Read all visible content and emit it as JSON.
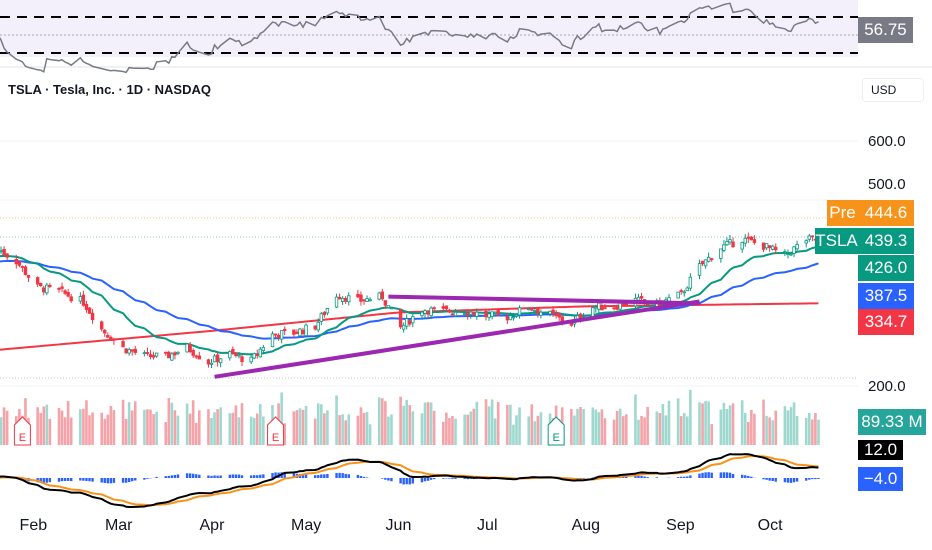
{
  "header": {
    "title": "TSLA · Tesla, Inc. · 1D · NASDAQ",
    "currency": "USD"
  },
  "price_axis": {
    "labels": [
      "600.0",
      "500.0",
      "200.0"
    ]
  },
  "badges": {
    "rsi": {
      "value": "56.75",
      "color": "#787b86"
    },
    "pre_label": "Pre",
    "pre": {
      "value": "444.6",
      "color": "#f7931a"
    },
    "symbol_label": "TSLA",
    "last": {
      "value": "439.3",
      "color": "#089981"
    },
    "ma_fast": {
      "value": "426.0",
      "color": "#089981"
    },
    "ma_mid": {
      "value": "387.5",
      "color": "#2962ff"
    },
    "ma_slow": {
      "value": "334.7",
      "color": "#f23645"
    },
    "volume": {
      "value": "89.33 M",
      "color": "#26a69a"
    },
    "macd": {
      "value": "12.0",
      "color": "#000000"
    },
    "signal": {
      "value": "−4.0",
      "color": "#2962ff"
    }
  },
  "time_axis": [
    "Feb",
    "Mar",
    "Apr",
    "May",
    "Jun",
    "Jul",
    "Aug",
    "Sep",
    "Oct"
  ],
  "chart_data": {
    "type": "candlestick",
    "ylim": [
      200,
      600
    ],
    "weekly_close": [
      [
        "2025-01-21",
        424
      ],
      [
        "2025-01-27",
        404
      ],
      [
        "2025-02-03",
        361
      ],
      [
        "2025-02-10",
        355
      ],
      [
        "2025-02-18",
        337
      ],
      [
        "2025-02-24",
        293
      ],
      [
        "2025-03-03",
        262
      ],
      [
        "2025-03-10",
        249
      ],
      [
        "2025-03-17",
        248
      ],
      [
        "2025-03-24",
        263
      ],
      [
        "2025-03-31",
        239
      ],
      [
        "2025-04-07",
        252
      ],
      [
        "2025-04-14",
        241
      ],
      [
        "2025-04-21",
        284
      ],
      [
        "2025-04-28",
        287
      ],
      [
        "2025-05-05",
        298
      ],
      [
        "2025-05-12",
        349
      ],
      [
        "2025-05-19",
        339
      ],
      [
        "2025-05-27",
        346
      ],
      [
        "2025-06-02",
        295
      ],
      [
        "2025-06-09",
        325
      ],
      [
        "2025-06-16",
        322
      ],
      [
        "2025-06-23",
        323
      ],
      [
        "2025-06-30",
        315
      ],
      [
        "2025-07-07",
        313
      ],
      [
        "2025-07-14",
        329
      ],
      [
        "2025-07-21",
        316
      ],
      [
        "2025-07-28",
        302
      ],
      [
        "2025-08-04",
        329
      ],
      [
        "2025-08-11",
        330
      ],
      [
        "2025-08-18",
        340
      ],
      [
        "2025-08-25",
        333
      ],
      [
        "2025-09-02",
        350
      ],
      [
        "2025-09-08",
        395
      ],
      [
        "2025-09-15",
        426
      ],
      [
        "2025-09-22",
        440
      ],
      [
        "2025-09-29",
        429
      ],
      [
        "2025-10-06",
        413
      ],
      [
        "2025-10-13",
        439
      ]
    ],
    "ma_slow": [
      [
        "2025-01-21",
        259
      ],
      [
        "2025-04-01",
        290
      ],
      [
        "2025-06-01",
        320
      ],
      [
        "2025-08-01",
        330
      ],
      [
        "2025-10-17",
        335
      ]
    ],
    "trendlines": [
      {
        "from": [
          "2025-04-02",
          215
        ],
        "to": [
          "2025-09-08",
          338
        ],
        "color": "#9c27b0"
      },
      {
        "from": [
          "2025-05-29",
          346
        ],
        "to": [
          "2025-09-08",
          335
        ],
        "color": "#9c27b0"
      }
    ],
    "earnings_markers": [
      "2025-01-29",
      "2025-04-22",
      "2025-07-23"
    ],
    "earnings_label": "E"
  }
}
